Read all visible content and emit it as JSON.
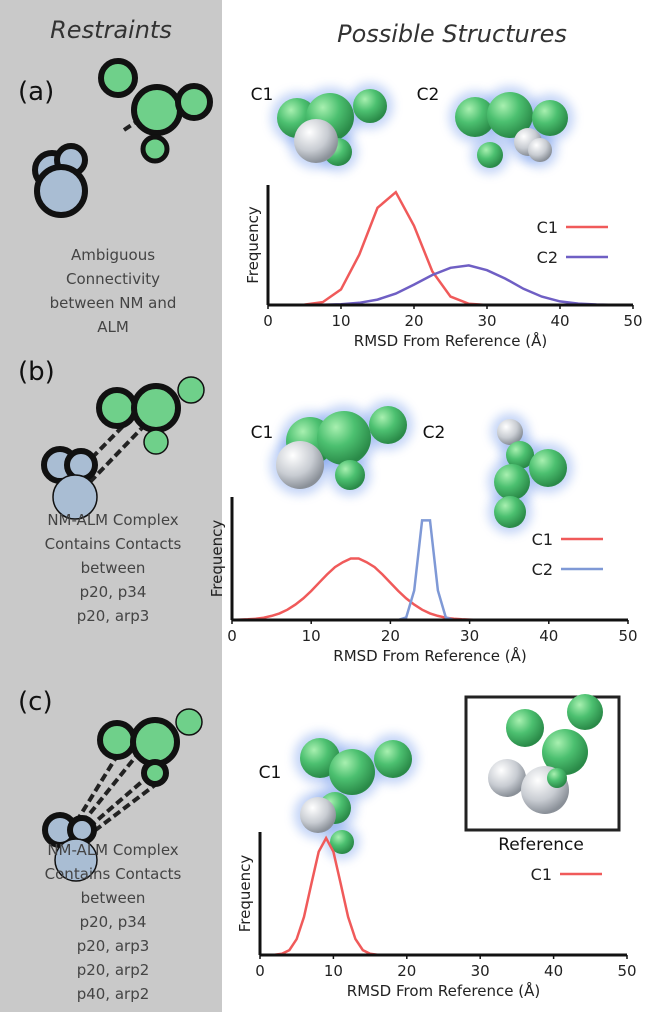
{
  "headers": {
    "left": "Restraints",
    "right": "Possible Structures"
  },
  "panels": [
    {
      "label": "(a)",
      "description": [
        "Ambiguous",
        "Connectivity",
        "between NM and",
        "ALM"
      ],
      "structure_labels": [
        "C1",
        "C2"
      ]
    },
    {
      "label": "(b)",
      "description": [
        "NM-ALM Complex",
        "Contains Contacts",
        "between",
        "p20, p34",
        "p20, arp3"
      ],
      "structure_labels": [
        "C1",
        "C2"
      ]
    },
    {
      "label": "(c)",
      "description": [
        "NM-ALM Complex",
        "Contains Contacts",
        "between",
        "p20, p34",
        "p20, arp3",
        "p20, arp2",
        "p40, arp2"
      ],
      "structure_labels": [
        "C1"
      ],
      "reference_label": "Reference"
    }
  ],
  "chart_data": [
    {
      "type": "line",
      "x_label": "RMSD From Reference (Å)",
      "y_label": "Frequency",
      "x": [
        0,
        2.5,
        5,
        7.5,
        10,
        12.5,
        15,
        17.5,
        20,
        22.5,
        25,
        27.5,
        30,
        32.5,
        35,
        37.5,
        40,
        42.5,
        45,
        47.5,
        50
      ],
      "series": [
        {
          "name": "C1",
          "color": "#f05a5a",
          "values": [
            0,
            0,
            0.003,
            0.024,
            0.13,
            0.42,
            0.81,
            0.94,
            0.66,
            0.28,
            0.07,
            0.01,
            0,
            0,
            0,
            0,
            0,
            0,
            0,
            0,
            0
          ]
        },
        {
          "name": "C2",
          "color": "#6f5fc4",
          "values": [
            0,
            0,
            0,
            0.002,
            0.006,
            0.018,
            0.045,
            0.095,
            0.17,
            0.25,
            0.31,
            0.33,
            0.29,
            0.22,
            0.135,
            0.07,
            0.03,
            0.012,
            0.004,
            0.001,
            0
          ]
        }
      ],
      "xlim": [
        0,
        50
      ],
      "xticks": [
        0,
        10,
        20,
        30,
        40,
        50
      ],
      "ylim": [
        0,
        1
      ],
      "grid": false,
      "legend": "upper right"
    },
    {
      "type": "line",
      "x_label": "RMSD From Reference (Å)",
      "y_label": "Frequency",
      "x": [
        0,
        1,
        2,
        3,
        4,
        5,
        6,
        7,
        8,
        9,
        10,
        11,
        12,
        13,
        14,
        15,
        16,
        17,
        18,
        19,
        20,
        21,
        22,
        23,
        24,
        25,
        26,
        27,
        28,
        29,
        30,
        31,
        32,
        33,
        34,
        35,
        36,
        37,
        38,
        39,
        40,
        41,
        42,
        43,
        44,
        45,
        46,
        47,
        48,
        49,
        50
      ],
      "series": [
        {
          "name": "C1",
          "color": "#f05a5a",
          "values": [
            0.001,
            0.003,
            0.006,
            0.01,
            0.019,
            0.033,
            0.054,
            0.084,
            0.125,
            0.176,
            0.236,
            0.303,
            0.37,
            0.43,
            0.47,
            0.5,
            0.5,
            0.47,
            0.43,
            0.37,
            0.303,
            0.236,
            0.176,
            0.125,
            0.084,
            0.054,
            0.033,
            0.019,
            0.01,
            0.006,
            0.003,
            0.001,
            0,
            0,
            0,
            0,
            0,
            0,
            0,
            0,
            0,
            0,
            0,
            0,
            0,
            0,
            0,
            0,
            0,
            0,
            0
          ]
        },
        {
          "name": "C2",
          "color": "#7f99d6",
          "values": [
            0,
            0,
            0,
            0,
            0,
            0,
            0,
            0,
            0,
            0,
            0,
            0,
            0,
            0,
            0,
            0,
            0,
            0,
            0,
            0,
            0,
            0,
            0.02,
            0.24,
            0.81,
            0.81,
            0.24,
            0.02,
            0,
            0,
            0,
            0,
            0,
            0,
            0,
            0,
            0,
            0,
            0,
            0,
            0,
            0,
            0,
            0,
            0,
            0,
            0,
            0,
            0,
            0,
            0
          ]
        }
      ],
      "xlim": [
        0,
        50
      ],
      "xticks": [
        0,
        10,
        20,
        30,
        40,
        50
      ],
      "ylim": [
        0,
        1
      ],
      "grid": false,
      "legend": "upper right"
    },
    {
      "type": "line",
      "x_label": "RMSD From Reference (Å)",
      "y_label": "Frequency",
      "x": [
        0,
        1,
        2,
        3,
        4,
        5,
        6,
        7,
        8,
        9,
        10,
        11,
        12,
        13,
        14,
        15,
        16,
        17,
        18,
        19,
        20,
        21,
        22,
        23,
        24,
        25,
        26,
        27,
        28,
        29,
        30,
        31,
        32,
        33,
        34,
        35,
        36,
        37,
        38,
        39,
        40,
        41,
        42,
        43,
        44,
        45,
        46,
        47,
        48,
        49,
        50
      ],
      "series": [
        {
          "name": "C1",
          "color": "#f05a5a",
          "values": [
            0,
            0,
            0.002,
            0.01,
            0.04,
            0.13,
            0.31,
            0.58,
            0.84,
            0.95,
            0.84,
            0.58,
            0.31,
            0.13,
            0.04,
            0.01,
            0.002,
            0,
            0,
            0,
            0,
            0,
            0,
            0,
            0,
            0,
            0,
            0,
            0,
            0,
            0,
            0,
            0,
            0,
            0,
            0,
            0,
            0,
            0,
            0,
            0,
            0,
            0,
            0,
            0,
            0,
            0,
            0,
            0,
            0,
            0
          ]
        }
      ],
      "xlim": [
        0,
        50
      ],
      "xticks": [
        0,
        10,
        20,
        30,
        40,
        50
      ],
      "ylim": [
        0,
        1
      ],
      "grid": false,
      "legend": "upper right"
    }
  ]
}
